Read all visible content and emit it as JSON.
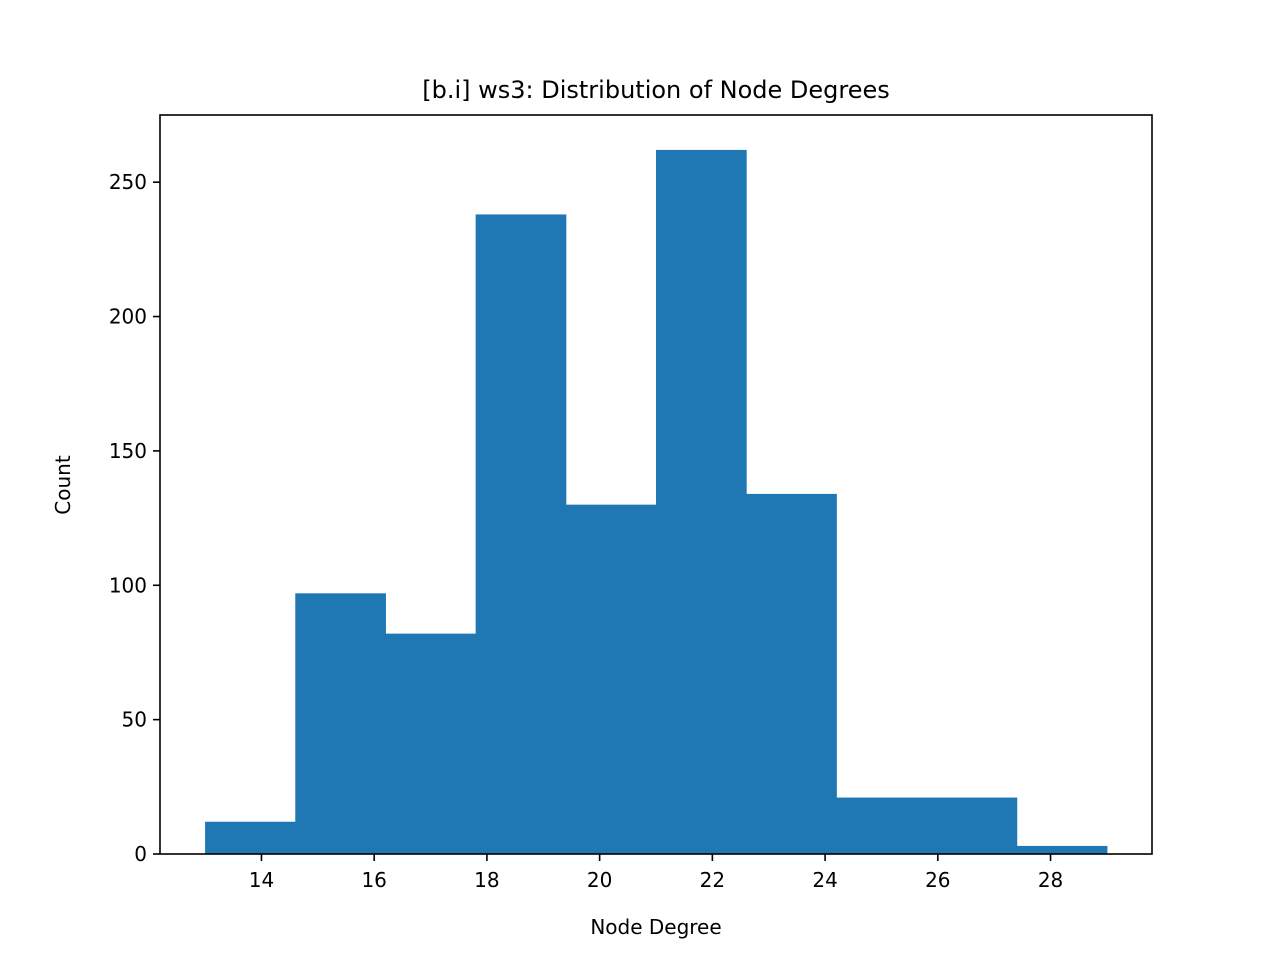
{
  "chart_data": {
    "type": "bar",
    "title": "[b.i] ws3: Distribution of Node Degrees",
    "xlabel": "Node Degree",
    "ylabel": "Count",
    "bin_edges": [
      13.0,
      14.6,
      16.2,
      17.8,
      19.4,
      21.0,
      22.6,
      24.2,
      25.8,
      27.4,
      29.0
    ],
    "values": [
      12,
      97,
      82,
      238,
      130,
      262,
      134,
      21,
      21,
      3
    ],
    "xlim": [
      12.2,
      29.8
    ],
    "ylim": [
      0,
      275
    ],
    "xticks": [
      14,
      16,
      18,
      20,
      22,
      24,
      26,
      28
    ],
    "yticks": [
      0,
      50,
      100,
      150,
      200,
      250
    ],
    "bar_color": "#1f77b4",
    "grid": false
  }
}
